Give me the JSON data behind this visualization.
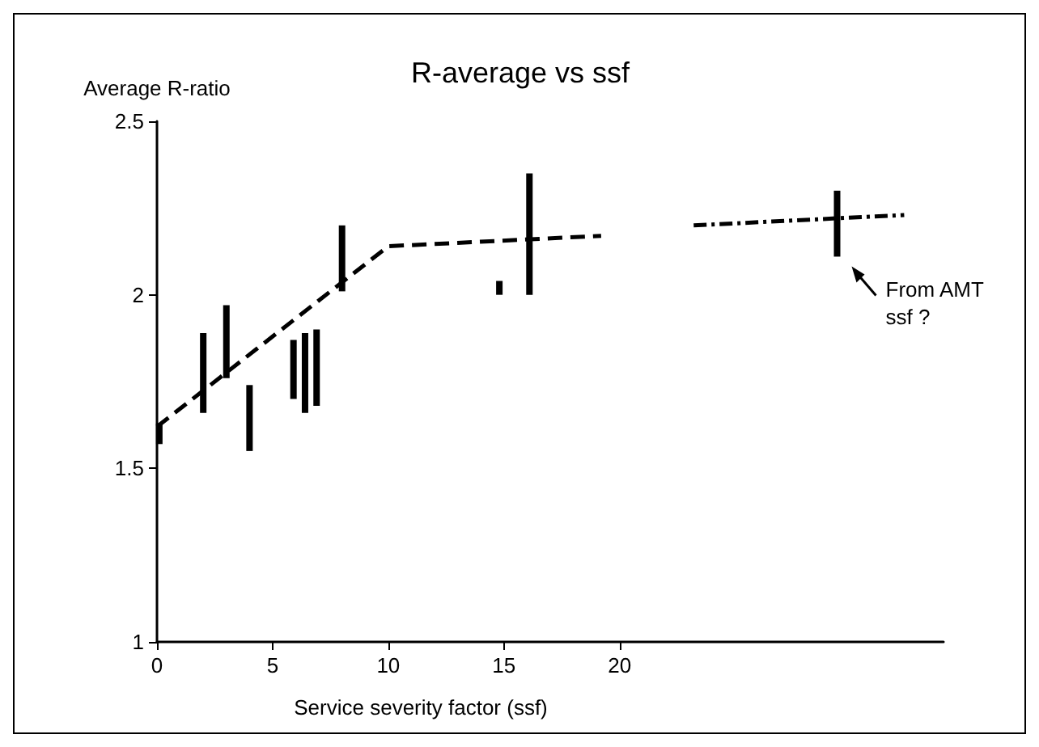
{
  "chart_data": {
    "type": "bar",
    "title": "R-average vs ssf",
    "xlabel": "Service severity factor (ssf)",
    "ylabel": "Average R-ratio",
    "x": [
      0.1,
      2.0,
      3.0,
      4.0,
      5.9,
      6.4,
      6.9,
      8.0,
      14.8,
      16.1,
      29.4
    ],
    "base": [
      1.57,
      1.66,
      1.76,
      1.55,
      1.7,
      1.66,
      1.68,
      2.01,
      2.0,
      2.0,
      2.11
    ],
    "values": [
      0.06,
      0.23,
      0.21,
      0.19,
      0.17,
      0.23,
      0.22,
      0.19,
      0.04,
      0.35,
      0.19
    ],
    "color": "#000000",
    "series": [
      {
        "type": "line",
        "x": [
          0,
          10,
          19.2
        ],
        "values": [
          1.62,
          2.14,
          2.17
        ],
        "color": "#000000",
        "line_style": "dashed"
      },
      {
        "type": "line",
        "x": [
          23.2,
          32.3
        ],
        "values": [
          2.2,
          2.23
        ],
        "color": "#000000",
        "line_style": "dotted"
      }
    ],
    "annotations": [
      {
        "text": "From AMT\nssf ?",
        "x": 29.4,
        "y": 2.11
      }
    ],
    "xlim": [
      0,
      34
    ],
    "xticks": [
      0,
      5,
      10,
      15,
      20
    ],
    "ylim": [
      1,
      2.5
    ],
    "yticks": [
      1,
      1.5,
      2,
      2.5
    ],
    "grid": false,
    "marker": "none"
  }
}
